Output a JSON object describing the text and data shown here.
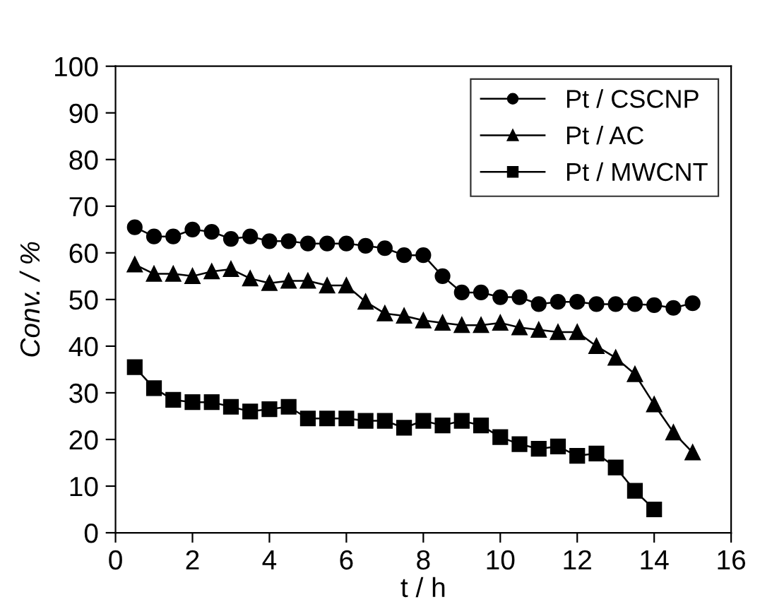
{
  "chart_data": {
    "type": "line",
    "xlabel": "t / h",
    "ylabel": "Conv. / %",
    "xlim": [
      0,
      16
    ],
    "ylim": [
      0,
      100
    ],
    "xticks": [
      0,
      2,
      4,
      6,
      8,
      10,
      12,
      14,
      16
    ],
    "yticks": [
      0,
      10,
      20,
      30,
      40,
      50,
      60,
      70,
      80,
      90,
      100
    ],
    "grid": false,
    "legend": "top right",
    "line_style": "solid",
    "series": [
      {
        "name": "Pt / CSCNP",
        "color": "#000000",
        "marker": "circle",
        "x": [
          0.5,
          1,
          1.5,
          2,
          2.5,
          3,
          3.5,
          4,
          4.5,
          5,
          5.5,
          6,
          6.5,
          7,
          7.5,
          8,
          8.5,
          9,
          9.5,
          10,
          10.5,
          11,
          11.5,
          12,
          12.5,
          13,
          13.5,
          14,
          14.5,
          15
        ],
        "values": [
          65.5,
          63.5,
          63.5,
          65,
          64.5,
          63,
          63.5,
          62.5,
          62.5,
          62,
          62,
          62,
          61.5,
          61,
          59.5,
          59.5,
          55,
          51.5,
          51.5,
          50.5,
          50.5,
          49,
          49.5,
          49.5,
          49,
          49,
          49,
          48.8,
          48.2,
          49.2
        ]
      },
      {
        "name": "Pt / AC",
        "color": "#000000",
        "marker": "triangle",
        "x": [
          0.5,
          1,
          1.5,
          2,
          2.5,
          3,
          3.5,
          4,
          4.5,
          5,
          5.5,
          6,
          6.5,
          7,
          7.5,
          8,
          8.5,
          9,
          9.5,
          10,
          10.5,
          11,
          11.5,
          12,
          12.5,
          13,
          13.5,
          14,
          14.5,
          15
        ],
        "values": [
          57.5,
          55.5,
          55.5,
          55,
          56,
          56.5,
          54.5,
          53.5,
          54,
          54,
          53,
          53,
          49.5,
          47,
          46.5,
          45.5,
          45,
          44.5,
          44.5,
          45,
          44,
          43.5,
          43,
          43,
          40,
          37.5,
          34,
          27.5,
          21.5,
          17.2
        ]
      },
      {
        "name": "Pt / MWCNT",
        "color": "#000000",
        "marker": "square",
        "x": [
          0.5,
          1,
          1.5,
          2,
          2.5,
          3,
          3.5,
          4,
          4.5,
          5,
          5.5,
          6,
          6.5,
          7,
          7.5,
          8,
          8.5,
          9,
          9.5,
          10,
          10.5,
          11,
          11.5,
          12,
          12.5,
          13,
          13.5,
          14
        ],
        "values": [
          35.5,
          31,
          28.5,
          28,
          28,
          27,
          26,
          26.5,
          27,
          24.5,
          24.5,
          24.5,
          24,
          24,
          22.5,
          24,
          23,
          24,
          23,
          20.5,
          19,
          18,
          18.5,
          16.5,
          17,
          14,
          9,
          5
        ]
      }
    ]
  }
}
